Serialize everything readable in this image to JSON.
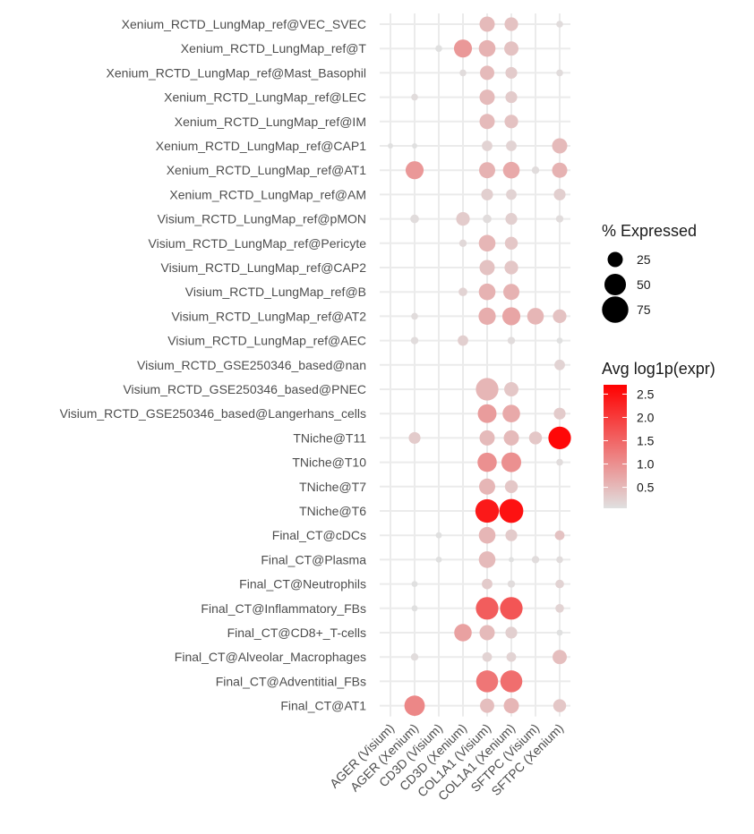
{
  "chart_data": {
    "type": "dot",
    "x_categories": [
      "AGER (Visium)",
      "AGER (Xenium)",
      "CD3D (Visium)",
      "CD3D (Xenium)",
      "COL1A1 (Visium)",
      "COL1A1 (Xenium)",
      "SFTPC (Visium)",
      "SFTPC (Xenium)"
    ],
    "y_categories": [
      "Xenium_RCTD_LungMap_ref@VEC_SVEC",
      "Xenium_RCTD_LungMap_ref@T",
      "Xenium_RCTD_LungMap_ref@Mast_Basophil",
      "Xenium_RCTD_LungMap_ref@LEC",
      "Xenium_RCTD_LungMap_ref@IM",
      "Xenium_RCTD_LungMap_ref@CAP1",
      "Xenium_RCTD_LungMap_ref@AT1",
      "Xenium_RCTD_LungMap_ref@AM",
      "Visium_RCTD_LungMap_ref@pMON",
      "Visium_RCTD_LungMap_ref@Pericyte",
      "Visium_RCTD_LungMap_ref@CAP2",
      "Visium_RCTD_LungMap_ref@B",
      "Visium_RCTD_LungMap_ref@AT2",
      "Visium_RCTD_LungMap_ref@AEC",
      "Visium_RCTD_GSE250346_based@nan",
      "Visium_RCTD_GSE250346_based@PNEC",
      "Visium_RCTD_GSE250346_based@Langerhans_cells",
      "TNiche@T11",
      "TNiche@T10",
      "TNiche@T7",
      "TNiche@T6",
      "Final_CT@cDCs",
      "Final_CT@Plasma",
      "Final_CT@Neutrophils",
      "Final_CT@Inflammatory_FBs",
      "Final_CT@CD8+_T-cells",
      "Final_CT@Alveolar_Macrophages",
      "Final_CT@Adventitial_FBs",
      "Final_CT@AT1"
    ],
    "points": [
      {
        "y": "Xenium_RCTD_LungMap_ref@VEC_SVEC",
        "x": "COL1A1 (Visium)",
        "pct": 25,
        "expr": 0.5
      },
      {
        "y": "Xenium_RCTD_LungMap_ref@VEC_SVEC",
        "x": "COL1A1 (Xenium)",
        "pct": 20,
        "expr": 0.4
      },
      {
        "y": "Xenium_RCTD_LungMap_ref@VEC_SVEC",
        "x": "SFTPC (Xenium)",
        "pct": 5,
        "expr": 0.1
      },
      {
        "y": "Xenium_RCTD_LungMap_ref@T",
        "x": "CD3D (Visium)",
        "pct": 5,
        "expr": 0.05
      },
      {
        "y": "Xenium_RCTD_LungMap_ref@T",
        "x": "CD3D (Xenium)",
        "pct": 35,
        "expr": 0.9
      },
      {
        "y": "Xenium_RCTD_LungMap_ref@T",
        "x": "COL1A1 (Visium)",
        "pct": 30,
        "expr": 0.6
      },
      {
        "y": "Xenium_RCTD_LungMap_ref@T",
        "x": "COL1A1 (Xenium)",
        "pct": 22,
        "expr": 0.4
      },
      {
        "y": "Xenium_RCTD_LungMap_ref@Mast_Basophil",
        "x": "CD3D (Xenium)",
        "pct": 5,
        "expr": 0.1
      },
      {
        "y": "Xenium_RCTD_LungMap_ref@Mast_Basophil",
        "x": "COL1A1 (Visium)",
        "pct": 22,
        "expr": 0.5
      },
      {
        "y": "Xenium_RCTD_LungMap_ref@Mast_Basophil",
        "x": "COL1A1 (Xenium)",
        "pct": 15,
        "expr": 0.3
      },
      {
        "y": "Xenium_RCTD_LungMap_ref@Mast_Basophil",
        "x": "SFTPC (Xenium)",
        "pct": 5,
        "expr": 0.1
      },
      {
        "y": "Xenium_RCTD_LungMap_ref@LEC",
        "x": "AGER (Xenium)",
        "pct": 5,
        "expr": 0.1
      },
      {
        "y": "Xenium_RCTD_LungMap_ref@LEC",
        "x": "COL1A1 (Visium)",
        "pct": 25,
        "expr": 0.5
      },
      {
        "y": "Xenium_RCTD_LungMap_ref@LEC",
        "x": "COL1A1 (Xenium)",
        "pct": 15,
        "expr": 0.3
      },
      {
        "y": "Xenium_RCTD_LungMap_ref@IM",
        "x": "COL1A1 (Visium)",
        "pct": 25,
        "expr": 0.5
      },
      {
        "y": "Xenium_RCTD_LungMap_ref@IM",
        "x": "COL1A1 (Xenium)",
        "pct": 20,
        "expr": 0.4
      },
      {
        "y": "Xenium_RCTD_LungMap_ref@CAP1",
        "x": "AGER (Visium)",
        "pct": 3,
        "expr": 0.05
      },
      {
        "y": "Xenium_RCTD_LungMap_ref@CAP1",
        "x": "AGER (Xenium)",
        "pct": 3,
        "expr": 0.05
      },
      {
        "y": "Xenium_RCTD_LungMap_ref@CAP1",
        "x": "COL1A1 (Visium)",
        "pct": 12,
        "expr": 0.2
      },
      {
        "y": "Xenium_RCTD_LungMap_ref@CAP1",
        "x": "COL1A1 (Xenium)",
        "pct": 12,
        "expr": 0.2
      },
      {
        "y": "Xenium_RCTD_LungMap_ref@CAP1",
        "x": "SFTPC (Xenium)",
        "pct": 25,
        "expr": 0.5
      },
      {
        "y": "Xenium_RCTD_LungMap_ref@AT1",
        "x": "AGER (Xenium)",
        "pct": 35,
        "expr": 0.9
      },
      {
        "y": "Xenium_RCTD_LungMap_ref@AT1",
        "x": "COL1A1 (Visium)",
        "pct": 28,
        "expr": 0.6
      },
      {
        "y": "Xenium_RCTD_LungMap_ref@AT1",
        "x": "COL1A1 (Xenium)",
        "pct": 30,
        "expr": 0.7
      },
      {
        "y": "Xenium_RCTD_LungMap_ref@AT1",
        "x": "SFTPC (Visium)",
        "pct": 6,
        "expr": 0.1
      },
      {
        "y": "Xenium_RCTD_LungMap_ref@AT1",
        "x": "SFTPC (Xenium)",
        "pct": 25,
        "expr": 0.6
      },
      {
        "y": "Xenium_RCTD_LungMap_ref@AM",
        "x": "COL1A1 (Visium)",
        "pct": 15,
        "expr": 0.25
      },
      {
        "y": "Xenium_RCTD_LungMap_ref@AM",
        "x": "COL1A1 (Xenium)",
        "pct": 12,
        "expr": 0.2
      },
      {
        "y": "Xenium_RCTD_LungMap_ref@AM",
        "x": "SFTPC (Xenium)",
        "pct": 15,
        "expr": 0.25
      },
      {
        "y": "Visium_RCTD_LungMap_ref@pMON",
        "x": "AGER (Xenium)",
        "pct": 8,
        "expr": 0.1
      },
      {
        "y": "Visium_RCTD_LungMap_ref@pMON",
        "x": "CD3D (Xenium)",
        "pct": 20,
        "expr": 0.3
      },
      {
        "y": "Visium_RCTD_LungMap_ref@pMON",
        "x": "COL1A1 (Visium)",
        "pct": 8,
        "expr": 0.1
      },
      {
        "y": "Visium_RCTD_LungMap_ref@pMON",
        "x": "COL1A1 (Xenium)",
        "pct": 15,
        "expr": 0.25
      },
      {
        "y": "Visium_RCTD_LungMap_ref@pMON",
        "x": "SFTPC (Xenium)",
        "pct": 6,
        "expr": 0.1
      },
      {
        "y": "Visium_RCTD_LungMap_ref@Pericyte",
        "x": "CD3D (Xenium)",
        "pct": 6,
        "expr": 0.15
      },
      {
        "y": "Visium_RCTD_LungMap_ref@Pericyte",
        "x": "COL1A1 (Visium)",
        "pct": 30,
        "expr": 0.55
      },
      {
        "y": "Visium_RCTD_LungMap_ref@Pericyte",
        "x": "COL1A1 (Xenium)",
        "pct": 18,
        "expr": 0.35
      },
      {
        "y": "Visium_RCTD_LungMap_ref@CAP2",
        "x": "COL1A1 (Visium)",
        "pct": 25,
        "expr": 0.4
      },
      {
        "y": "Visium_RCTD_LungMap_ref@CAP2",
        "x": "COL1A1 (Xenium)",
        "pct": 20,
        "expr": 0.35
      },
      {
        "y": "Visium_RCTD_LungMap_ref@B",
        "x": "CD3D (Xenium)",
        "pct": 8,
        "expr": 0.2
      },
      {
        "y": "Visium_RCTD_LungMap_ref@B",
        "x": "COL1A1 (Visium)",
        "pct": 30,
        "expr": 0.6
      },
      {
        "y": "Visium_RCTD_LungMap_ref@B",
        "x": "COL1A1 (Xenium)",
        "pct": 28,
        "expr": 0.6
      },
      {
        "y": "Visium_RCTD_LungMap_ref@AT2",
        "x": "AGER (Xenium)",
        "pct": 5,
        "expr": 0.1
      },
      {
        "y": "Visium_RCTD_LungMap_ref@AT2",
        "x": "COL1A1 (Visium)",
        "pct": 32,
        "expr": 0.65
      },
      {
        "y": "Visium_RCTD_LungMap_ref@AT2",
        "x": "COL1A1 (Xenium)",
        "pct": 35,
        "expr": 0.75
      },
      {
        "y": "Visium_RCTD_LungMap_ref@AT2",
        "x": "SFTPC (Visium)",
        "pct": 30,
        "expr": 0.55
      },
      {
        "y": "Visium_RCTD_LungMap_ref@AT2",
        "x": "SFTPC (Xenium)",
        "pct": 20,
        "expr": 0.4
      },
      {
        "y": "Visium_RCTD_LungMap_ref@AEC",
        "x": "AGER (Xenium)",
        "pct": 6,
        "expr": 0.1
      },
      {
        "y": "Visium_RCTD_LungMap_ref@AEC",
        "x": "CD3D (Xenium)",
        "pct": 12,
        "expr": 0.25
      },
      {
        "y": "Visium_RCTD_LungMap_ref@AEC",
        "x": "COL1A1 (Xenium)",
        "pct": 6,
        "expr": 0.1
      },
      {
        "y": "Visium_RCTD_LungMap_ref@AEC",
        "x": "SFTPC (Xenium)",
        "pct": 4,
        "expr": 0.05
      },
      {
        "y": "Visium_RCTD_GSE250346_based@nan",
        "x": "SFTPC (Xenium)",
        "pct": 12,
        "expr": 0.2
      },
      {
        "y": "Visium_RCTD_GSE250346_based@PNEC",
        "x": "COL1A1 (Visium)",
        "pct": 55,
        "expr": 0.55
      },
      {
        "y": "Visium_RCTD_GSE250346_based@PNEC",
        "x": "COL1A1 (Xenium)",
        "pct": 22,
        "expr": 0.35
      },
      {
        "y": "Visium_RCTD_GSE250346_based@Langerhans_cells",
        "x": "COL1A1 (Visium)",
        "pct": 38,
        "expr": 0.85
      },
      {
        "y": "Visium_RCTD_GSE250346_based@Langerhans_cells",
        "x": "COL1A1 (Xenium)",
        "pct": 33,
        "expr": 0.7
      },
      {
        "y": "Visium_RCTD_GSE250346_based@Langerhans_cells",
        "x": "SFTPC (Xenium)",
        "pct": 15,
        "expr": 0.3
      },
      {
        "y": "TNiche@T11",
        "x": "AGER (Xenium)",
        "pct": 15,
        "expr": 0.3
      },
      {
        "y": "TNiche@T11",
        "x": "COL1A1 (Visium)",
        "pct": 25,
        "expr": 0.5
      },
      {
        "y": "TNiche@T11",
        "x": "COL1A1 (Xenium)",
        "pct": 25,
        "expr": 0.5
      },
      {
        "y": "TNiche@T11",
        "x": "SFTPC (Visium)",
        "pct": 18,
        "expr": 0.35
      },
      {
        "y": "TNiche@T11",
        "x": "SFTPC (Xenium)",
        "pct": 55,
        "expr": 2.6
      },
      {
        "y": "TNiche@T10",
        "x": "COL1A1 (Visium)",
        "pct": 40,
        "expr": 1.0
      },
      {
        "y": "TNiche@T10",
        "x": "COL1A1 (Xenium)",
        "pct": 42,
        "expr": 1.0
      },
      {
        "y": "TNiche@T10",
        "x": "SFTPC (Xenium)",
        "pct": 5,
        "expr": 0.1
      },
      {
        "y": "TNiche@T7",
        "x": "COL1A1 (Visium)",
        "pct": 28,
        "expr": 0.55
      },
      {
        "y": "TNiche@T7",
        "x": "COL1A1 (Xenium)",
        "pct": 18,
        "expr": 0.35
      },
      {
        "y": "TNiche@T6",
        "x": "COL1A1 (Visium)",
        "pct": 60,
        "expr": 2.4
      },
      {
        "y": "TNiche@T6",
        "x": "COL1A1 (Xenium)",
        "pct": 62,
        "expr": 2.5
      },
      {
        "y": "Final_CT@cDCs",
        "x": "CD3D (Visium)",
        "pct": 4,
        "expr": 0.05
      },
      {
        "y": "Final_CT@cDCs",
        "x": "COL1A1 (Visium)",
        "pct": 30,
        "expr": 0.55
      },
      {
        "y": "Final_CT@cDCs",
        "x": "COL1A1 (Xenium)",
        "pct": 15,
        "expr": 0.3
      },
      {
        "y": "Final_CT@cDCs",
        "x": "SFTPC (Xenium)",
        "pct": 10,
        "expr": 0.4
      },
      {
        "y": "Final_CT@Plasma",
        "x": "CD3D (Visium)",
        "pct": 4,
        "expr": 0.05
      },
      {
        "y": "Final_CT@Plasma",
        "x": "COL1A1 (Visium)",
        "pct": 30,
        "expr": 0.5
      },
      {
        "y": "Final_CT@Plasma",
        "x": "COL1A1 (Xenium)",
        "pct": 3,
        "expr": 0.05
      },
      {
        "y": "Final_CT@Plasma",
        "x": "SFTPC (Visium)",
        "pct": 6,
        "expr": 0.1
      },
      {
        "y": "Final_CT@Plasma",
        "x": "SFTPC (Xenium)",
        "pct": 5,
        "expr": 0.1
      },
      {
        "y": "Final_CT@Neutrophils",
        "x": "AGER (Xenium)",
        "pct": 4,
        "expr": 0.05
      },
      {
        "y": "Final_CT@Neutrophils",
        "x": "COL1A1 (Visium)",
        "pct": 12,
        "expr": 0.3
      },
      {
        "y": "Final_CT@Neutrophils",
        "x": "COL1A1 (Xenium)",
        "pct": 6,
        "expr": 0.1
      },
      {
        "y": "Final_CT@Neutrophils",
        "x": "SFTPC (Xenium)",
        "pct": 8,
        "expr": 0.2
      },
      {
        "y": "Final_CT@Inflammatory_FBs",
        "x": "AGER (Xenium)",
        "pct": 4,
        "expr": 0.05
      },
      {
        "y": "Final_CT@Inflammatory_FBs",
        "x": "COL1A1 (Visium)",
        "pct": 55,
        "expr": 1.6
      },
      {
        "y": "Final_CT@Inflammatory_FBs",
        "x": "COL1A1 (Xenium)",
        "pct": 55,
        "expr": 1.7
      },
      {
        "y": "Final_CT@Inflammatory_FBs",
        "x": "SFTPC (Xenium)",
        "pct": 8,
        "expr": 0.2
      },
      {
        "y": "Final_CT@CD8+_T-cells",
        "x": "CD3D (Xenium)",
        "pct": 33,
        "expr": 0.8
      },
      {
        "y": "Final_CT@CD8+_T-cells",
        "x": "COL1A1 (Visium)",
        "pct": 25,
        "expr": 0.5
      },
      {
        "y": "Final_CT@CD8+_T-cells",
        "x": "COL1A1 (Xenium)",
        "pct": 15,
        "expr": 0.25
      },
      {
        "y": "Final_CT@CD8+_T-cells",
        "x": "SFTPC (Xenium)",
        "pct": 4,
        "expr": 0.05
      },
      {
        "y": "Final_CT@Alveolar_Macrophages",
        "x": "AGER (Xenium)",
        "pct": 6,
        "expr": 0.1
      },
      {
        "y": "Final_CT@Alveolar_Macrophages",
        "x": "COL1A1 (Visium)",
        "pct": 10,
        "expr": 0.2
      },
      {
        "y": "Final_CT@Alveolar_Macrophages",
        "x": "COL1A1 (Xenium)",
        "pct": 10,
        "expr": 0.2
      },
      {
        "y": "Final_CT@Alveolar_Macrophages",
        "x": "SFTPC (Xenium)",
        "pct": 22,
        "expr": 0.45
      },
      {
        "y": "Final_CT@Adventitial_FBs",
        "x": "COL1A1 (Visium)",
        "pct": 52,
        "expr": 1.3
      },
      {
        "y": "Final_CT@Adventitial_FBs",
        "x": "COL1A1 (Xenium)",
        "pct": 52,
        "expr": 1.4
      },
      {
        "y": "Final_CT@AT1",
        "x": "AGER (Xenium)",
        "pct": 45,
        "expr": 1.1
      },
      {
        "y": "Final_CT@AT1",
        "x": "COL1A1 (Visium)",
        "pct": 22,
        "expr": 0.45
      },
      {
        "y": "Final_CT@AT1",
        "x": "COL1A1 (Xenium)",
        "pct": 25,
        "expr": 0.55
      },
      {
        "y": "Final_CT@AT1",
        "x": "SFTPC (Xenium)",
        "pct": 18,
        "expr": 0.35
      }
    ],
    "size_legend": {
      "title": "% Expressed",
      "breaks": [
        25,
        50,
        75
      ]
    },
    "color_legend": {
      "title": "Avg log1p(expr)",
      "breaks": [
        0.5,
        1.0,
        1.5,
        2.0,
        2.5
      ],
      "labels": [
        "0.5",
        "1.0",
        "1.5",
        "2.0",
        "2.5"
      ],
      "range": [
        0.05,
        2.7
      ],
      "low_color": "#e0e0e0",
      "high_color": "#ff0000"
    },
    "grid": true
  }
}
